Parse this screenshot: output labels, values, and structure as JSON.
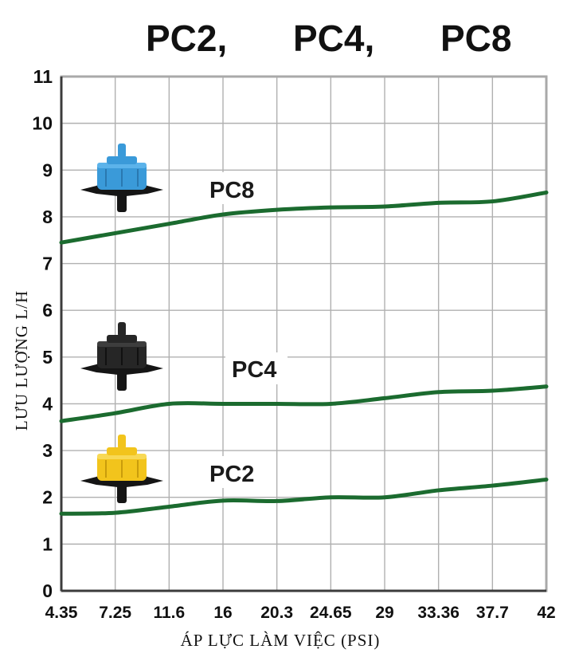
{
  "title_parts": [
    "PC2,",
    "PC4,",
    "PC8"
  ],
  "chart_data": {
    "type": "line",
    "xlabel": "ÁP LỰC LÀM VIỆC (PSI)",
    "ylabel": "LƯU LƯỢNG L/H",
    "x_ticks": [
      "4.35",
      "7.25",
      "11.6",
      "16",
      "20.3",
      "24.65",
      "29",
      "33.36",
      "37.7",
      "42"
    ],
    "y_ticks": [
      "0",
      "1",
      "2",
      "3",
      "4",
      "5",
      "6",
      "7",
      "8",
      "9",
      "10",
      "11"
    ],
    "ylim": [
      0,
      11
    ],
    "grid": true,
    "series": [
      {
        "name": "PC8",
        "values": [
          7.45,
          7.65,
          7.85,
          8.05,
          8.15,
          8.2,
          8.22,
          8.3,
          8.33,
          8.52
        ]
      },
      {
        "name": "PC4",
        "values": [
          3.63,
          3.8,
          4.0,
          4.0,
          4.0,
          4.0,
          4.12,
          4.25,
          4.28,
          4.37
        ]
      },
      {
        "name": "PC2",
        "values": [
          1.65,
          1.67,
          1.8,
          1.93,
          1.92,
          2.0,
          2.0,
          2.15,
          2.25,
          2.38
        ]
      }
    ],
    "colors": {
      "line": "#1b6b2f",
      "pc8_emitter": "#3a9ad9",
      "pc4_emitter": "#1f1f1f",
      "pc2_emitter": "#f2c41c",
      "emitter_base": "#151515"
    },
    "icons": [
      "pc8-emitter-icon",
      "pc4-emitter-icon",
      "pc2-emitter-icon"
    ]
  }
}
